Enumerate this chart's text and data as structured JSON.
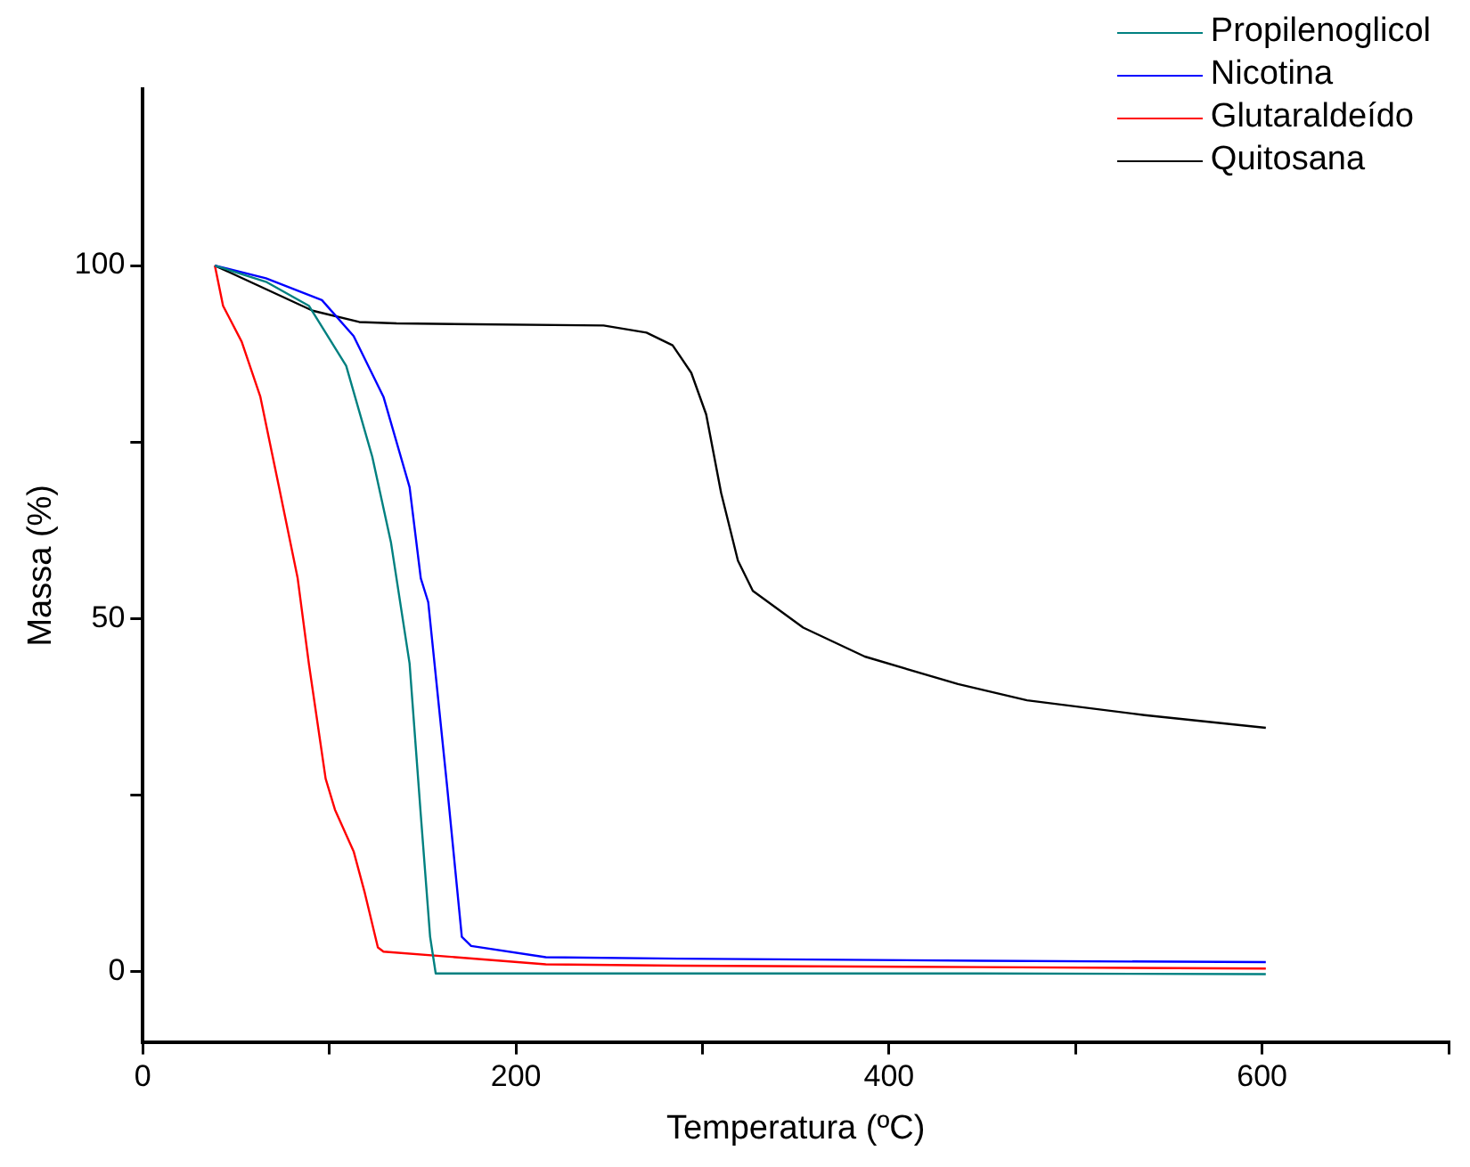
{
  "chart_data": {
    "type": "line",
    "xlabel": "Temperatura (ºC)",
    "ylabel": "Massa (%)",
    "xlim": [
      0,
      700
    ],
    "ylim": [
      -10,
      125
    ],
    "xticks": [
      0,
      {
        "value": 100,
        "label": null
      },
      200,
      {
        "value": 300,
        "label": null
      },
      400,
      {
        "value": 500,
        "label": null
      },
      600,
      {
        "value": 700,
        "label": null
      }
    ],
    "yticks": [
      0,
      {
        "value": 25,
        "label": null
      },
      50,
      {
        "value": 75,
        "label": null
      },
      100
    ],
    "grid": false,
    "legend": "top right",
    "marker": "none",
    "line_style": "solid",
    "series": [
      {
        "name": "Propilenoglicol",
        "color": "#008080",
        "x": [
          38.6,
          66,
          89,
          109,
          123,
          133,
          143,
          149,
          154,
          157,
          300,
          450,
          602
        ],
        "values": [
          100,
          97.7,
          94.3,
          85.8,
          72.9,
          60.8,
          43.6,
          22.2,
          4.9,
          -0.3,
          -0.3,
          -0.3,
          -0.4
        ]
      },
      {
        "name": "Nicotina",
        "color": "#0000ff",
        "x": [
          38.6,
          66,
          96,
          113,
          129,
          143,
          149,
          153,
          163,
          171,
          176,
          216,
          287,
          450,
          602
        ],
        "values": [
          100,
          98.2,
          95.1,
          90,
          81.4,
          68.6,
          55.7,
          52.3,
          26.5,
          4.9,
          3.6,
          2,
          1.8,
          1.5,
          1.3
        ]
      },
      {
        "name": "Glutaraldeído",
        "color": "#ff0000",
        "x": [
          38.6,
          43,
          53,
          63,
          73,
          83,
          89,
          98,
          103,
          113,
          119,
          126,
          129,
          216,
          287,
          450,
          602
        ],
        "values": [
          100,
          94.3,
          89.2,
          81.4,
          68.6,
          55.7,
          43.6,
          27.3,
          22.9,
          17,
          11.1,
          3.4,
          2.8,
          1,
          0.8,
          0.6,
          0.4
        ]
      },
      {
        "name": "Quitosana",
        "color": "#000000",
        "x": [
          38.6,
          91,
          116,
          136,
          247,
          270,
          284,
          294,
          302,
          310,
          319,
          327,
          354,
          387,
          437,
          474,
          537,
          602
        ],
        "values": [
          100,
          93.6,
          92,
          91.8,
          91.5,
          90.5,
          88.7,
          84.8,
          78.9,
          67.8,
          58.2,
          53.9,
          48.7,
          44.6,
          40.7,
          38.4,
          36.3,
          34.5
        ]
      }
    ]
  }
}
